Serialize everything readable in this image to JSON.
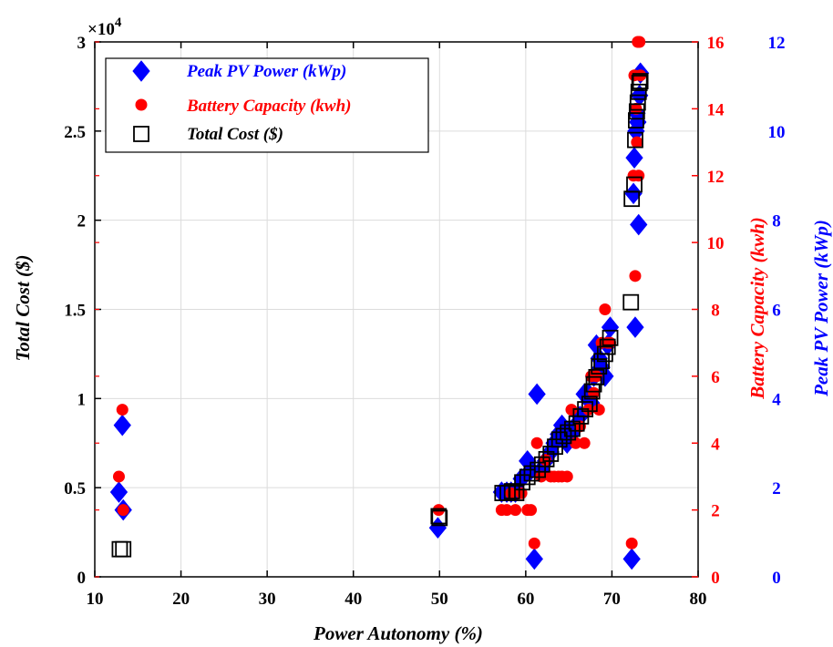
{
  "chart_data": {
    "type": "scatter",
    "xlabel": "Power Autonomy (%)",
    "ylabel": "Total Cost ($)",
    "y_exponent_base": "×10",
    "y_exponent_power": "4",
    "ylabel_right_1": "Battery Capacity (kwh)",
    "ylabel_right_2": "Peak PV Power (kWp)",
    "xlim": [
      10,
      80
    ],
    "ylim": [
      0,
      30000
    ],
    "ylim_right_1": [
      0,
      16
    ],
    "ylim_right_2": [
      0,
      12
    ],
    "x_ticks": [
      10,
      20,
      30,
      40,
      50,
      60,
      70,
      80
    ],
    "y_ticks": [
      0,
      5000,
      10000,
      15000,
      20000,
      25000,
      30000
    ],
    "y_tick_labels": [
      "0",
      "0.5",
      "1",
      "1.5",
      "2",
      "2.5",
      "3"
    ],
    "y_right_1_ticks": [
      0,
      2,
      4,
      6,
      8,
      10,
      12,
      14,
      16
    ],
    "y_right_2_ticks": [
      0,
      2,
      4,
      6,
      8,
      10,
      12
    ],
    "grid": true,
    "legend_position": "top-left",
    "colors": {
      "pv": "#0000ff",
      "battery": "#ff0000",
      "cost": "#000000",
      "axis": "#000000",
      "grid": "#dcdcdc"
    },
    "series": [
      {
        "name": "Peak PV Power (kWp)",
        "marker": "diamond",
        "axis": "right2",
        "points": [
          [
            12.8,
            1.9
          ],
          [
            13.2,
            3.4
          ],
          [
            13.3,
            1.5
          ],
          [
            49.8,
            1.1
          ],
          [
            57.2,
            1.9
          ],
          [
            57.8,
            1.9
          ],
          [
            58.3,
            1.9
          ],
          [
            58.8,
            1.9
          ],
          [
            59.5,
            2.2
          ],
          [
            60.2,
            2.6
          ],
          [
            60.6,
            2.4
          ],
          [
            61.0,
            0.4
          ],
          [
            61.3,
            4.1
          ],
          [
            61.8,
            2.4
          ],
          [
            62.3,
            2.6
          ],
          [
            62.9,
            2.8
          ],
          [
            63.3,
            3.0
          ],
          [
            63.8,
            3.2
          ],
          [
            64.2,
            3.4
          ],
          [
            64.8,
            3.0
          ],
          [
            65.3,
            3.2
          ],
          [
            65.8,
            3.4
          ],
          [
            66.3,
            3.6
          ],
          [
            66.8,
            4.1
          ],
          [
            67.3,
            4.1
          ],
          [
            67.6,
            3.9
          ],
          [
            67.9,
            4.5
          ],
          [
            68.2,
            5.2
          ],
          [
            68.5,
            4.9
          ],
          [
            68.8,
            4.7
          ],
          [
            69.2,
            4.5
          ],
          [
            69.5,
            5.2
          ],
          [
            69.8,
            5.6
          ],
          [
            72.3,
            0.4
          ],
          [
            72.5,
            8.6
          ],
          [
            72.6,
            9.4
          ],
          [
            72.7,
            5.6
          ],
          [
            72.8,
            10.0
          ],
          [
            72.9,
            10.4
          ],
          [
            73.0,
            10.2
          ],
          [
            73.1,
            7.9
          ],
          [
            73.2,
            10.8
          ],
          [
            73.3,
            11.3
          ]
        ]
      },
      {
        "name": "Battery Capacity (kwh)",
        "marker": "circle",
        "axis": "right1",
        "points": [
          [
            12.8,
            3.0
          ],
          [
            13.2,
            5.0
          ],
          [
            13.3,
            2.0
          ],
          [
            49.9,
            2.0
          ],
          [
            57.2,
            2.0
          ],
          [
            57.8,
            2.0
          ],
          [
            58.3,
            2.5
          ],
          [
            58.8,
            2.0
          ],
          [
            59.5,
            2.5
          ],
          [
            60.2,
            2.0
          ],
          [
            60.6,
            2.0
          ],
          [
            61.0,
            1.0
          ],
          [
            61.3,
            4.0
          ],
          [
            61.8,
            3.0
          ],
          [
            62.3,
            3.5
          ],
          [
            62.9,
            3.0
          ],
          [
            63.3,
            3.0
          ],
          [
            63.8,
            3.0
          ],
          [
            64.2,
            3.0
          ],
          [
            64.8,
            3.0
          ],
          [
            65.3,
            5.0
          ],
          [
            65.8,
            4.0
          ],
          [
            66.3,
            4.5
          ],
          [
            66.8,
            4.0
          ],
          [
            67.3,
            5.0
          ],
          [
            67.6,
            6.0
          ],
          [
            67.9,
            5.5
          ],
          [
            68.2,
            6.0
          ],
          [
            68.5,
            5.0
          ],
          [
            68.8,
            7.0
          ],
          [
            69.2,
            8.0
          ],
          [
            69.5,
            7.0
          ],
          [
            69.8,
            7.0
          ],
          [
            72.3,
            1.0
          ],
          [
            72.5,
            12.0
          ],
          [
            72.6,
            15.0
          ],
          [
            72.7,
            9.0
          ],
          [
            72.8,
            14.0
          ],
          [
            72.9,
            13.0
          ],
          [
            73.0,
            16.0
          ],
          [
            73.1,
            12.0
          ],
          [
            73.2,
            16.0
          ],
          [
            73.3,
            15.0
          ]
        ]
      },
      {
        "name": "Total Cost ($)",
        "marker": "square",
        "axis": "left",
        "points": [
          [
            12.9,
            1550
          ],
          [
            13.3,
            1550
          ],
          [
            49.9,
            3400
          ],
          [
            50.0,
            3300
          ],
          [
            57.3,
            4700
          ],
          [
            57.9,
            4700
          ],
          [
            58.4,
            4800
          ],
          [
            58.9,
            4700
          ],
          [
            59.6,
            5300
          ],
          [
            60.2,
            5600
          ],
          [
            60.7,
            5800
          ],
          [
            61.4,
            6000
          ],
          [
            61.9,
            6300
          ],
          [
            62.4,
            6600
          ],
          [
            62.9,
            6900
          ],
          [
            63.4,
            7300
          ],
          [
            63.9,
            7700
          ],
          [
            64.4,
            7900
          ],
          [
            64.9,
            8100
          ],
          [
            65.4,
            8300
          ],
          [
            65.9,
            8600
          ],
          [
            66.4,
            9000
          ],
          [
            66.9,
            9400
          ],
          [
            67.4,
            9700
          ],
          [
            67.7,
            10400
          ],
          [
            67.9,
            10800
          ],
          [
            68.2,
            11200
          ],
          [
            68.5,
            11800
          ],
          [
            68.8,
            12100
          ],
          [
            69.2,
            12500
          ],
          [
            69.5,
            12900
          ],
          [
            69.8,
            13400
          ],
          [
            72.2,
            15400
          ],
          [
            72.3,
            21200
          ],
          [
            72.6,
            22000
          ],
          [
            72.7,
            24500
          ],
          [
            72.8,
            25600
          ],
          [
            72.9,
            26100
          ],
          [
            73.0,
            26600
          ],
          [
            73.1,
            27200
          ],
          [
            73.2,
            27700
          ],
          [
            73.3,
            27800
          ]
        ]
      }
    ]
  }
}
